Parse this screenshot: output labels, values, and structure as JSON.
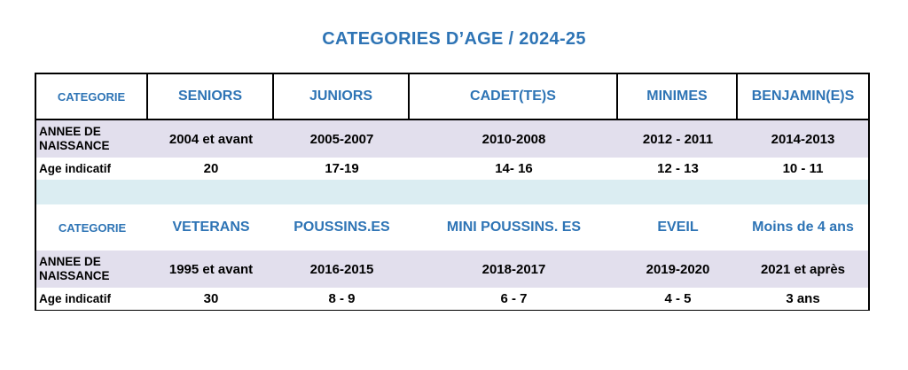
{
  "title": "CATEGORIES D’AGE / 2024-25",
  "block1": {
    "header": [
      "CATEGORIE",
      "SENIORS",
      "JUNIORS",
      "CADET(TE)S",
      "MINIMES",
      "BENJAMIN(E)S"
    ],
    "birth_label": "ANNEE DE NAISSANCE",
    "birth": [
      "2004 et avant",
      "2005-2007",
      "2010-2008",
      "2012 - 2011",
      "2014-2013"
    ],
    "age_label": "Age indicatif",
    "age": [
      "20",
      "17-19",
      "14- 16",
      "12 - 13",
      "10 - 11"
    ]
  },
  "block2": {
    "header": [
      "CATEGORIE",
      "VETERANS",
      "POUSSINS.ES",
      "MINI POUSSINS. ES",
      "EVEIL",
      "Moins de 4 ans"
    ],
    "birth_label": "ANNEE DE NAISSANCE",
    "birth": [
      "1995 et avant",
      "2016-2015",
      "2018-2017",
      "2019-2020",
      "2021 et après"
    ],
    "age_label": "Age indicatif",
    "age": [
      "30",
      "8 - 9",
      "6 - 7",
      "4 - 5",
      "3 ans"
    ]
  },
  "colors": {
    "accent_blue": "#2e74b5",
    "lavender": "#e2dfed",
    "light_blue": "#dbedf2"
  }
}
